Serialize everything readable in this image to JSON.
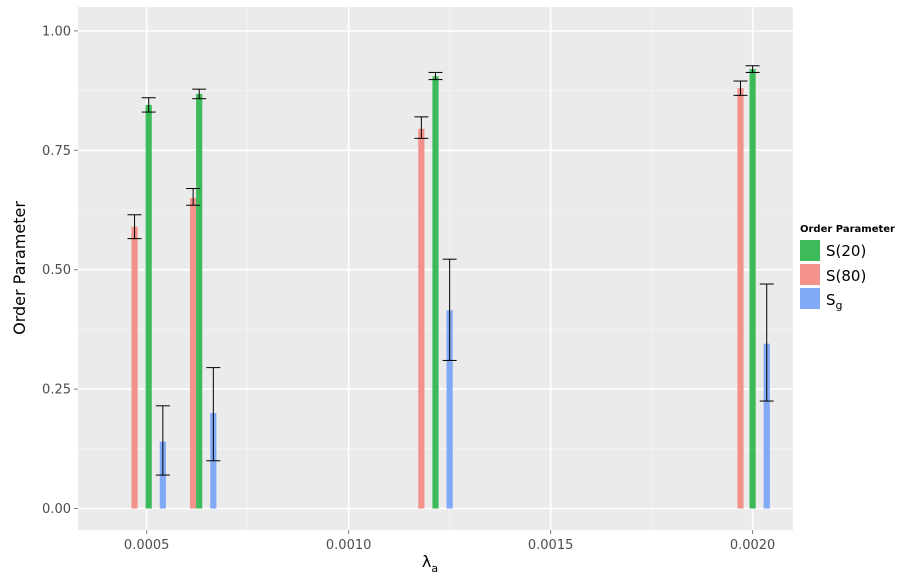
{
  "chart_data": {
    "type": "bar",
    "xlabel": "λ",
    "xlabel_sub": "a",
    "ylabel": "Order Parameter",
    "xlim": [
      0.00033,
      0.0021
    ],
    "ylim": [
      -0.045,
      1.05
    ],
    "x_ticks": [
      0.0005,
      0.001,
      0.0015,
      0.002
    ],
    "x_tick_labels": [
      "0.0005",
      "0.0010",
      "0.0015",
      "0.0020"
    ],
    "y_ticks": [
      0,
      0.25,
      0.5,
      0.75,
      1.0
    ],
    "y_tick_labels": [
      "0.00",
      "0.25",
      "0.50",
      "0.75",
      "1.00"
    ],
    "grid": true,
    "background": "#ebebeb",
    "bar_width": 1.53e-05,
    "legend": {
      "title": "Order Parameter",
      "placement": "right",
      "entries": [
        {
          "label": "S(20)",
          "color": "#3dbb5b"
        },
        {
          "label": "S(80)",
          "color": "#f2928a"
        },
        {
          "label": "S",
          "label_sub": "g",
          "color": "#82a9f5"
        }
      ]
    },
    "series": [
      {
        "name": "S(80)",
        "color": "#f2928a",
        "x": [
          0.00047,
          0.000615,
          0.00118,
          0.00197
        ],
        "values": [
          0.59,
          0.65,
          0.795,
          0.88
        ],
        "err_low": [
          0.565,
          0.635,
          0.775,
          0.865
        ],
        "err_high": [
          0.615,
          0.67,
          0.82,
          0.895
        ]
      },
      {
        "name": "S(20)",
        "color": "#3dbb5b",
        "x": [
          0.000505,
          0.00063,
          0.001215,
          0.002
        ],
        "values": [
          0.845,
          0.868,
          0.905,
          0.92
        ],
        "err_low": [
          0.83,
          0.858,
          0.898,
          0.913
        ],
        "err_high": [
          0.86,
          0.878,
          0.913,
          0.927
        ]
      },
      {
        "name": "S",
        "color": "#82a9f5",
        "x": [
          0.00054,
          0.000665,
          0.00125,
          0.002035
        ],
        "values": [
          0.14,
          0.2,
          0.415,
          0.345
        ],
        "err_low": [
          0.07,
          0.1,
          0.31,
          0.225
        ],
        "err_high": [
          0.215,
          0.295,
          0.522,
          0.47
        ]
      }
    ]
  }
}
